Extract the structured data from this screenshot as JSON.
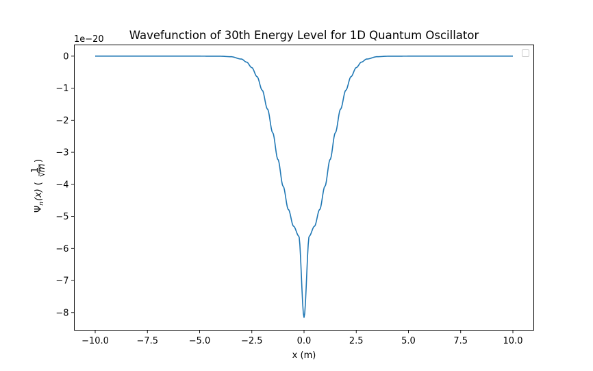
{
  "chart_data": {
    "type": "line",
    "title": "Wavefunction of 30th Energy Level for 1D Quantum Oscillator",
    "xlabel": "x (m)",
    "ylabel_parts": {
      "psi": "Ψ",
      "sub": "n",
      "arg": "(x)",
      "unit_num": "1",
      "unit_den": "m"
    },
    "y_offset_text": "1e−20",
    "xlim": [
      -11,
      11
    ],
    "ylim": [
      -8.55,
      0.35
    ],
    "x_ticks": [
      {
        "value": -10.0,
        "label": "−10.0"
      },
      {
        "value": -7.5,
        "label": "−7.5"
      },
      {
        "value": -5.0,
        "label": "−5.0"
      },
      {
        "value": -2.5,
        "label": "−2.5"
      },
      {
        "value": 0.0,
        "label": "0.0"
      },
      {
        "value": 2.5,
        "label": "2.5"
      },
      {
        "value": 5.0,
        "label": "5.0"
      },
      {
        "value": 7.5,
        "label": "7.5"
      },
      {
        "value": 10.0,
        "label": "10.0"
      }
    ],
    "y_ticks": [
      {
        "value": 0,
        "label": "0"
      },
      {
        "value": -1,
        "label": "−1"
      },
      {
        "value": -2,
        "label": "−2"
      },
      {
        "value": -3,
        "label": "−3"
      },
      {
        "value": -4,
        "label": "−4"
      },
      {
        "value": -5,
        "label": "−5"
      },
      {
        "value": -6,
        "label": "−6"
      },
      {
        "value": -7,
        "label": "−7"
      },
      {
        "value": -8,
        "label": "−8"
      }
    ],
    "grid": false,
    "legend": "top-right (empty)",
    "series": [
      {
        "color": "#1f77b4",
        "x": [
          -10.0,
          -5.0,
          -4.0,
          -3.5,
          -3.0,
          -2.75,
          -2.5,
          -2.25,
          -2.0,
          -1.75,
          -1.5,
          -1.25,
          -1.0,
          -0.75,
          -0.5,
          -0.25,
          0.0,
          0.25,
          0.5,
          0.75,
          1.0,
          1.25,
          1.5,
          1.75,
          2.0,
          2.25,
          2.5,
          2.75,
          3.0,
          3.5,
          4.0,
          5.0,
          10.0
        ],
        "y": [
          0.0,
          -0.0001,
          -0.0026,
          -0.0178,
          -0.0906,
          -0.1865,
          -0.3579,
          -0.6397,
          -1.065,
          -1.6519,
          -2.3888,
          -3.2231,
          -4.0612,
          -4.784,
          -5.3072,
          -5.6132,
          -8.15,
          -5.6132,
          -5.3072,
          -4.784,
          -4.0612,
          -3.2231,
          -2.3888,
          -1.6519,
          -1.065,
          -0.6397,
          -0.3579,
          -0.1865,
          -0.0906,
          -0.0178,
          -0.0026,
          -0.0001,
          0.0
        ]
      }
    ]
  }
}
